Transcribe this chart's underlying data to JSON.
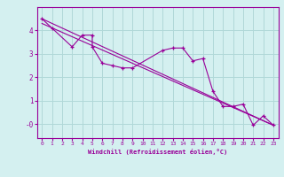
{
  "xlabel": "Windchill (Refroidissement éolien,°C)",
  "background_color": "#d4f0f0",
  "grid_color": "#b0d8d8",
  "line_color": "#990099",
  "xlim": [
    -0.5,
    23.5
  ],
  "ylim": [
    -0.6,
    5.0
  ],
  "yticks": [
    0,
    1,
    2,
    3,
    4
  ],
  "ytick_labels": [
    "-0",
    "1",
    "2",
    "3",
    "4"
  ],
  "xticks": [
    0,
    1,
    2,
    3,
    4,
    5,
    6,
    7,
    8,
    9,
    10,
    11,
    12,
    13,
    14,
    15,
    16,
    17,
    18,
    19,
    20,
    21,
    22,
    23
  ],
  "series1_x": [
    0,
    1,
    3,
    4,
    5,
    5,
    6,
    7,
    8,
    9,
    12,
    13,
    14,
    15,
    16,
    17,
    18,
    19,
    20,
    21,
    22,
    23
  ],
  "series1_y": [
    4.5,
    4.1,
    3.3,
    3.8,
    3.8,
    3.3,
    2.6,
    2.5,
    2.4,
    2.4,
    3.15,
    3.25,
    3.25,
    2.7,
    2.8,
    1.4,
    0.75,
    0.75,
    0.85,
    -0.05,
    0.35,
    -0.05
  ],
  "series2_x": [
    0,
    23
  ],
  "series2_y": [
    4.5,
    -0.05
  ],
  "series3_x": [
    0,
    23
  ],
  "series3_y": [
    4.3,
    -0.05
  ]
}
